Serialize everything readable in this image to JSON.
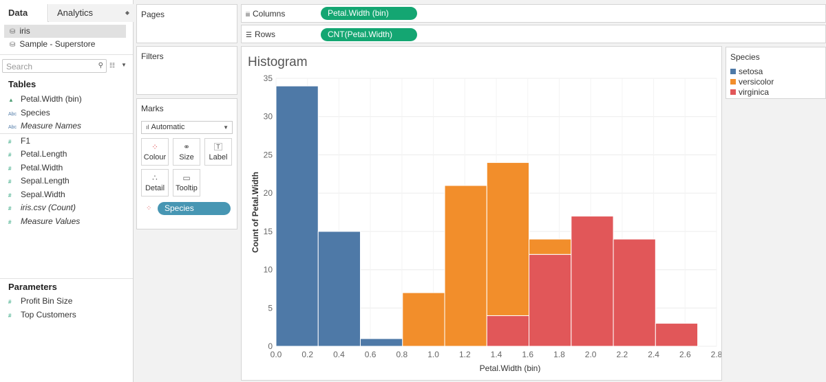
{
  "left_pane": {
    "tabs": {
      "data": "Data",
      "analytics": "Analytics"
    },
    "datasources": [
      "iris",
      "Sample - Superstore"
    ],
    "search_placeholder": "Search",
    "tables_title": "Tables",
    "dimensions": [
      "Petal.Width (bin)",
      "Species",
      "Measure Names"
    ],
    "measures": [
      "F1",
      "Petal.Length",
      "Petal.Width",
      "Sepal.Length",
      "Sepal.Width",
      "iris.csv (Count)",
      "Measure Values"
    ],
    "parameters_title": "Parameters",
    "parameters": [
      "Profit Bin Size",
      "Top Customers"
    ]
  },
  "cards": {
    "pages": "Pages",
    "filters": "Filters",
    "marks": "Marks",
    "mark_type": "Automatic",
    "mark_buttons": {
      "colour": "Colour",
      "size": "Size",
      "label": "Label",
      "detail": "Detail",
      "tooltip": "Tooltip"
    },
    "colour_pill": "Species"
  },
  "shelves": {
    "columns_label": "Columns",
    "columns_pill": "Petal.Width (bin)",
    "rows_label": "Rows",
    "rows_pill": "CNT(Petal.Width)"
  },
  "legend": {
    "title": "Species",
    "items": [
      {
        "label": "setosa",
        "color": "#4e79a7"
      },
      {
        "label": "versicolor",
        "color": "#f28e2b"
      },
      {
        "label": "virginica",
        "color": "#e15759"
      }
    ]
  },
  "chart_data": {
    "type": "bar",
    "title": "Histogram",
    "xlabel": "Petal.Width (bin)",
    "ylabel": "Count of Petal.Width",
    "xlim": [
      0,
      2.8
    ],
    "ylim": [
      0,
      35
    ],
    "bin_width": 0.268,
    "x_ticks": [
      "0.0",
      "0.2",
      "0.4",
      "0.6",
      "0.8",
      "1.0",
      "1.2",
      "1.4",
      "1.6",
      "1.8",
      "2.0",
      "2.2",
      "2.4",
      "2.6",
      "2.8"
    ],
    "y_ticks": [
      0,
      5,
      10,
      15,
      20,
      25,
      30,
      35
    ],
    "bins": [
      {
        "start": 0.0,
        "setosa": 34,
        "versicolor": 0,
        "virginica": 0
      },
      {
        "start": 0.268,
        "setosa": 15,
        "versicolor": 0,
        "virginica": 0
      },
      {
        "start": 0.536,
        "setosa": 1,
        "versicolor": 0,
        "virginica": 0
      },
      {
        "start": 0.804,
        "setosa": 0,
        "versicolor": 7,
        "virginica": 0
      },
      {
        "start": 1.072,
        "setosa": 0,
        "versicolor": 21,
        "virginica": 0
      },
      {
        "start": 1.34,
        "setosa": 0,
        "versicolor": 20,
        "virginica": 4
      },
      {
        "start": 1.608,
        "setosa": 0,
        "versicolor": 2,
        "virginica": 12
      },
      {
        "start": 1.876,
        "setosa": 0,
        "versicolor": 0,
        "virginica": 17
      },
      {
        "start": 2.144,
        "setosa": 0,
        "versicolor": 0,
        "virginica": 14
      },
      {
        "start": 2.412,
        "setosa": 0,
        "versicolor": 0,
        "virginica": 3
      }
    ],
    "series_colors": {
      "setosa": "#4e79a7",
      "versicolor": "#f28e2b",
      "virginica": "#e15759"
    },
    "grid": true,
    "legend": "right"
  }
}
